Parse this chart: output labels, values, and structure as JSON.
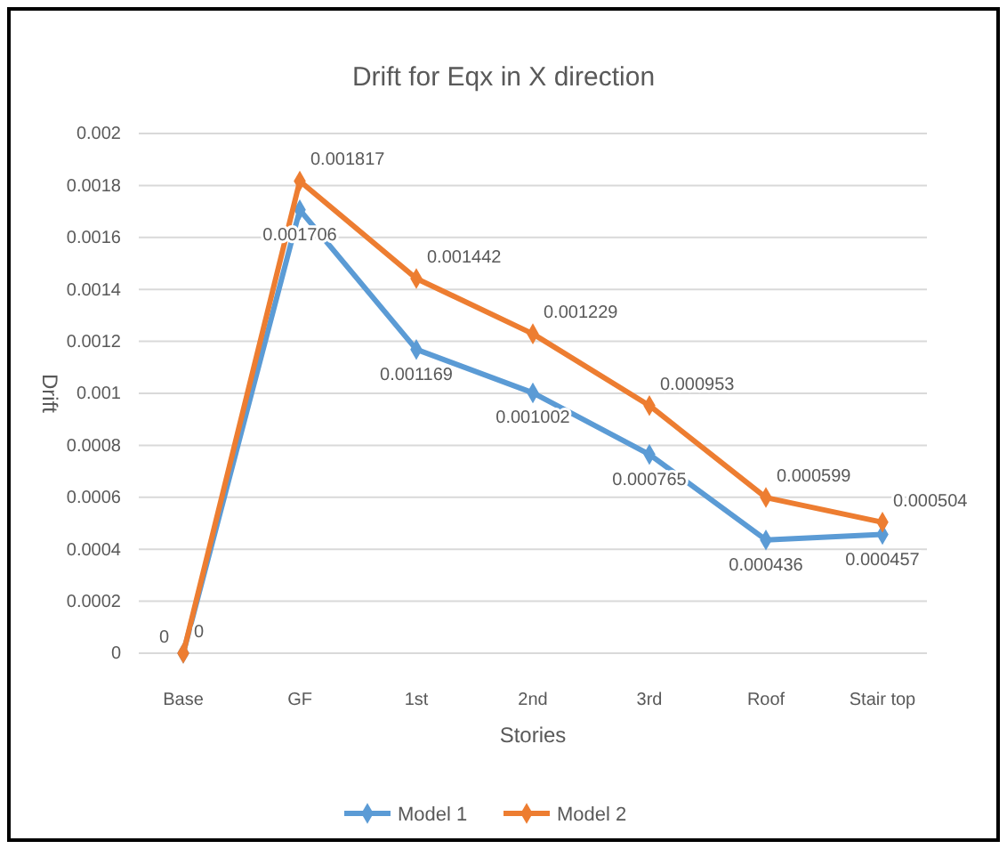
{
  "chart_data": {
    "type": "line",
    "title": "Drift for Eqx in X direction",
    "xlabel": "Stories",
    "ylabel": "Drift",
    "categories": [
      "Base",
      "GF",
      "1st",
      "2nd",
      "3rd",
      "Roof",
      "Stair top"
    ],
    "series": [
      {
        "name": "Model 1",
        "color": "#5b9bd5",
        "values": [
          0,
          0.001706,
          0.001169,
          0.001002,
          0.000765,
          0.000436,
          0.000457
        ]
      },
      {
        "name": "Model 2",
        "color": "#ed7d31",
        "values": [
          0,
          0.001817,
          0.001442,
          0.001229,
          0.000953,
          0.000599,
          0.000504
        ]
      }
    ],
    "ylim": [
      0,
      0.002
    ],
    "yticks": [
      0,
      0.0002,
      0.0004,
      0.0006,
      0.0008,
      0.001,
      0.0012,
      0.0014,
      0.0016,
      0.0018,
      0.002
    ],
    "grid": "y",
    "legend": "bottom",
    "marker": "diamond",
    "line_style": "solid",
    "data_labels": true
  }
}
